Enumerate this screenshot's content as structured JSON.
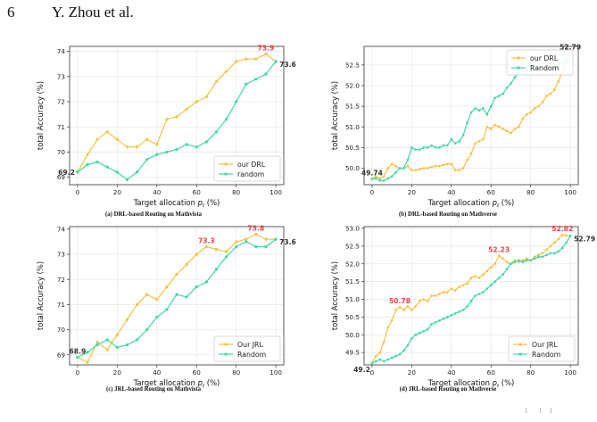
{
  "header": {
    "page_number": "6",
    "author": "Y. Zhou et al."
  },
  "footer_fragments": [
    "[",
    "[",
    "]"
  ],
  "chart_data": [
    {
      "id": "a",
      "type": "line",
      "caption": "(a) DRL-based Routing on Mathvista",
      "xlabel": "Target allocation p_t (%)",
      "ylabel": "total Accuracy (%)",
      "xlim": [
        -4,
        104
      ],
      "ylim": [
        68.7,
        74.2
      ],
      "xticks": [
        0,
        20,
        40,
        60,
        80,
        100
      ],
      "yticks": [
        69,
        70,
        71,
        72,
        73,
        74
      ],
      "grid": true,
      "legend_position": "lower-right",
      "series": [
        {
          "name": "our DRL",
          "color": "#f5c242",
          "x": [
            0,
            5,
            10,
            15,
            20,
            25,
            30,
            35,
            40,
            45,
            50,
            55,
            60,
            65,
            70,
            75,
            80,
            85,
            90,
            95,
            100
          ],
          "y": [
            69.2,
            69.9,
            70.5,
            70.8,
            70.5,
            70.2,
            70.2,
            70.5,
            70.3,
            71.3,
            71.4,
            71.7,
            72.0,
            72.2,
            72.8,
            73.2,
            73.6,
            73.7,
            73.7,
            73.9,
            73.6
          ]
        },
        {
          "name": "random",
          "color": "#3ed8a3",
          "x": [
            0,
            5,
            10,
            15,
            20,
            25,
            30,
            35,
            40,
            45,
            50,
            55,
            60,
            65,
            70,
            75,
            80,
            85,
            90,
            95,
            100
          ],
          "y": [
            69.2,
            69.5,
            69.6,
            69.4,
            69.2,
            68.9,
            69.2,
            69.7,
            69.9,
            70.0,
            70.1,
            70.3,
            70.2,
            70.4,
            70.8,
            71.3,
            72.0,
            72.7,
            72.9,
            73.1,
            73.6
          ]
        }
      ],
      "annotations": [
        {
          "text": "69.2",
          "x": 0,
          "y": 69.2,
          "color": "#333333",
          "pos": "left"
        },
        {
          "text": "73.9",
          "x": 95,
          "y": 73.9,
          "color": "#ee4444",
          "pos": "above"
        },
        {
          "text": "73.6",
          "x": 100,
          "y": 73.6,
          "color": "#333333",
          "pos": "right"
        }
      ]
    },
    {
      "id": "b",
      "type": "line",
      "caption": "(b) DRL-based Routing on Mathverse",
      "xlabel": "Target allocation p_t (%)",
      "ylabel": "total Accuracy (%)",
      "xlim": [
        -4,
        104
      ],
      "ylim": [
        49.6,
        52.95
      ],
      "xticks": [
        0,
        20,
        40,
        60,
        80,
        100
      ],
      "yticks": [
        50.0,
        50.5,
        51.0,
        51.5,
        52.0,
        52.5
      ],
      "grid": true,
      "legend_position": "top-center",
      "series": [
        {
          "name": "our DRL",
          "color": "#f5c242",
          "x": [
            0,
            2,
            4,
            6,
            8,
            10,
            12,
            14,
            16,
            18,
            20,
            22,
            24,
            26,
            28,
            30,
            32,
            34,
            36,
            38,
            40,
            42,
            44,
            46,
            48,
            50,
            52,
            54,
            56,
            58,
            60,
            62,
            64,
            66,
            68,
            70,
            72,
            74,
            76,
            78,
            80,
            82,
            84,
            86,
            88,
            90,
            92,
            94,
            96,
            98,
            100
          ],
          "y": [
            49.74,
            49.8,
            49.75,
            49.8,
            50.0,
            50.1,
            50.05,
            50.0,
            50.0,
            50.05,
            49.95,
            49.95,
            49.97,
            50.0,
            50.0,
            50.03,
            50.05,
            50.05,
            50.08,
            50.1,
            50.1,
            49.95,
            49.95,
            50.0,
            50.2,
            50.35,
            50.6,
            50.65,
            50.7,
            51.0,
            50.95,
            51.05,
            51.0,
            50.95,
            50.9,
            50.85,
            50.95,
            51.0,
            51.2,
            51.3,
            51.35,
            51.45,
            51.5,
            51.6,
            51.75,
            51.8,
            51.9,
            52.1,
            52.35,
            52.55,
            52.79
          ]
        },
        {
          "name": "Random",
          "color": "#3ed8a3",
          "x": [
            0,
            2,
            4,
            6,
            8,
            10,
            12,
            14,
            16,
            18,
            20,
            22,
            24,
            26,
            28,
            30,
            32,
            34,
            36,
            38,
            40,
            42,
            44,
            46,
            48,
            50,
            52,
            54,
            56,
            58,
            60,
            62,
            64,
            66,
            68,
            70,
            72,
            74,
            76,
            78,
            80,
            82,
            84,
            86,
            88,
            90,
            92,
            94,
            96,
            98,
            100
          ],
          "y": [
            49.74,
            49.75,
            49.7,
            49.7,
            49.75,
            49.8,
            49.9,
            50.0,
            50.0,
            50.2,
            50.5,
            50.45,
            50.45,
            50.5,
            50.5,
            50.55,
            50.5,
            50.5,
            50.55,
            50.55,
            50.7,
            50.6,
            50.65,
            50.8,
            51.1,
            51.35,
            51.45,
            51.4,
            51.45,
            51.3,
            51.5,
            51.7,
            51.75,
            51.8,
            51.95,
            52.05,
            52.2,
            52.3,
            52.35,
            52.4,
            52.45,
            52.45,
            52.45,
            52.45,
            52.5,
            52.55,
            52.45,
            52.5,
            52.55,
            52.6,
            52.79
          ]
        }
      ],
      "annotations": [
        {
          "text": "49.74",
          "x": 0,
          "y": 49.74,
          "color": "#333333",
          "pos": "above"
        },
        {
          "text": "52.79",
          "x": 100,
          "y": 52.79,
          "color": "#333333",
          "pos": "above"
        }
      ]
    },
    {
      "id": "c",
      "type": "line",
      "caption": "(c) JRL-based Routing on Mathvista",
      "xlabel": "Target allocation p_t (%)",
      "ylabel": "total Accuracy (%)",
      "xlim": [
        -4,
        104
      ],
      "ylim": [
        68.6,
        74.1
      ],
      "xticks": [
        0,
        20,
        40,
        60,
        80,
        100
      ],
      "yticks": [
        69,
        70,
        71,
        72,
        73,
        74
      ],
      "grid": true,
      "legend_position": "lower-right",
      "series": [
        {
          "name": "Our JRL",
          "color": "#f5c242",
          "x": [
            0,
            5,
            10,
            15,
            20,
            25,
            30,
            35,
            40,
            45,
            50,
            55,
            60,
            65,
            70,
            75,
            80,
            85,
            90,
            95,
            100
          ],
          "y": [
            68.9,
            68.7,
            69.5,
            69.2,
            69.8,
            70.4,
            71.0,
            71.4,
            71.2,
            71.7,
            72.2,
            72.6,
            73.0,
            73.3,
            73.2,
            73.1,
            73.5,
            73.6,
            73.8,
            73.6,
            73.6
          ]
        },
        {
          "name": "Random",
          "color": "#3ed8a3",
          "x": [
            0,
            5,
            10,
            15,
            20,
            25,
            30,
            35,
            40,
            45,
            50,
            55,
            60,
            65,
            70,
            75,
            80,
            85,
            90,
            95,
            100
          ],
          "y": [
            68.9,
            69.1,
            69.4,
            69.6,
            69.3,
            69.4,
            69.6,
            70.0,
            70.5,
            70.8,
            71.4,
            71.3,
            71.7,
            71.9,
            72.4,
            72.9,
            73.3,
            73.5,
            73.3,
            73.3,
            73.6
          ]
        }
      ],
      "annotations": [
        {
          "text": "68.9",
          "x": 0,
          "y": 68.9,
          "color": "#333333",
          "pos": "above"
        },
        {
          "text": "73.3",
          "x": 65,
          "y": 73.3,
          "color": "#ee4444",
          "pos": "above"
        },
        {
          "text": "73.8",
          "x": 90,
          "y": 73.8,
          "color": "#ee4444",
          "pos": "above"
        },
        {
          "text": "73.6",
          "x": 100,
          "y": 73.6,
          "color": "#333333",
          "pos": "right"
        }
      ]
    },
    {
      "id": "d",
      "type": "line",
      "caption": "(d) JRL-based Routing on Mathverse",
      "xlabel": "Target allocation p_t (%)",
      "ylabel": "total Accuracy (%)",
      "xlim": [
        -4,
        104
      ],
      "ylim": [
        49.15,
        53.05
      ],
      "xticks": [
        0,
        20,
        40,
        60,
        80,
        100
      ],
      "yticks": [
        49.5,
        50.0,
        50.5,
        51.0,
        51.5,
        52.0,
        52.5,
        53.0
      ],
      "grid": true,
      "legend_position": "lower-right",
      "series": [
        {
          "name": "Our JRL",
          "color": "#f5c242",
          "x": [
            0,
            2,
            4,
            6,
            8,
            10,
            12,
            14,
            16,
            18,
            20,
            22,
            24,
            26,
            28,
            30,
            32,
            34,
            36,
            38,
            40,
            42,
            44,
            46,
            48,
            50,
            52,
            54,
            56,
            58,
            60,
            62,
            64,
            66,
            68,
            70,
            72,
            74,
            76,
            78,
            80,
            82,
            84,
            86,
            88,
            90,
            92,
            94,
            96,
            98,
            100
          ],
          "y": [
            49.2,
            49.4,
            49.5,
            49.8,
            50.2,
            50.4,
            50.7,
            50.78,
            50.7,
            50.8,
            50.7,
            50.8,
            50.95,
            51.0,
            50.95,
            51.1,
            51.1,
            51.15,
            51.2,
            51.2,
            51.3,
            51.25,
            51.35,
            51.4,
            51.45,
            51.6,
            51.65,
            51.6,
            51.7,
            51.8,
            51.9,
            52.0,
            52.23,
            52.15,
            52.05,
            52.0,
            52.1,
            52.05,
            52.1,
            52.15,
            52.1,
            52.2,
            52.25,
            52.3,
            52.4,
            52.5,
            52.6,
            52.7,
            52.82,
            52.8,
            52.79
          ]
        },
        {
          "name": "Random",
          "color": "#3ed8a3",
          "x": [
            0,
            2,
            4,
            6,
            8,
            10,
            12,
            14,
            16,
            18,
            20,
            22,
            24,
            26,
            28,
            30,
            32,
            34,
            36,
            38,
            40,
            42,
            44,
            46,
            48,
            50,
            52,
            54,
            56,
            58,
            60,
            62,
            64,
            66,
            68,
            70,
            72,
            74,
            76,
            78,
            80,
            82,
            84,
            86,
            88,
            90,
            92,
            94,
            96,
            98,
            100
          ],
          "y": [
            49.2,
            49.25,
            49.3,
            49.25,
            49.3,
            49.35,
            49.4,
            49.45,
            49.55,
            49.7,
            49.9,
            50.0,
            50.05,
            50.1,
            50.15,
            50.3,
            50.35,
            50.4,
            50.45,
            50.5,
            50.55,
            50.6,
            50.65,
            50.7,
            50.8,
            50.95,
            51.1,
            51.15,
            51.2,
            51.3,
            51.4,
            51.5,
            51.6,
            51.7,
            51.85,
            52.0,
            52.05,
            52.1,
            52.05,
            52.1,
            52.1,
            52.15,
            52.2,
            52.2,
            52.25,
            52.3,
            52.3,
            52.35,
            52.45,
            52.6,
            52.79
          ]
        }
      ],
      "annotations": [
        {
          "text": "49.2",
          "x": 0,
          "y": 49.2,
          "color": "#333333",
          "pos": "below-left"
        },
        {
          "text": "50.78",
          "x": 14,
          "y": 50.78,
          "color": "#ee4444",
          "pos": "above"
        },
        {
          "text": "52.23",
          "x": 64,
          "y": 52.23,
          "color": "#ee4444",
          "pos": "above"
        },
        {
          "text": "52.82",
          "x": 96,
          "y": 52.82,
          "color": "#ee4444",
          "pos": "above"
        },
        {
          "text": "52.79",
          "x": 100,
          "y": 52.79,
          "color": "#333333",
          "pos": "right"
        }
      ]
    }
  ]
}
